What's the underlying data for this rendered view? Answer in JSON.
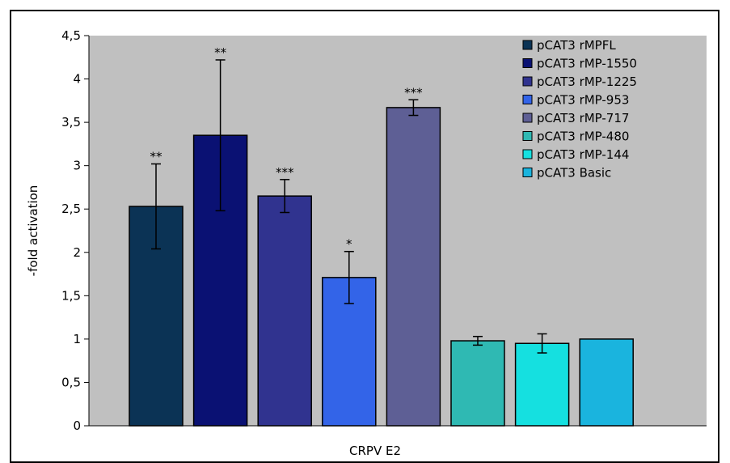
{
  "chart_data": {
    "type": "bar",
    "title": "",
    "xlabel": "CRPV E2",
    "ylabel": "-fold activation",
    "ylim": [
      0,
      4.5
    ],
    "y_ticks": [
      "0",
      "0,5",
      "1",
      "1,5",
      "2",
      "2,5",
      "3",
      "3,5",
      "4",
      "4,5"
    ],
    "y_tick_values": [
      0,
      0.5,
      1,
      1.5,
      2,
      2.5,
      3,
      3.5,
      4,
      4.5
    ],
    "grid": false,
    "legend_position": "top-right",
    "plot_background": "#c0c0c0",
    "series": [
      {
        "name": "pCAT3 rMPFL",
        "value": 2.53,
        "error": 0.49,
        "significance": "**",
        "color": "#0b3355"
      },
      {
        "name": "pCAT3 rMP-1550",
        "value": 3.35,
        "error": 0.87,
        "significance": "**",
        "color": "#0a1173"
      },
      {
        "name": "pCAT3 rMP-1225",
        "value": 2.65,
        "error": 0.19,
        "significance": "***",
        "color": "#30338f"
      },
      {
        "name": "pCAT3 rMP-953",
        "value": 1.71,
        "error": 0.3,
        "significance": "*",
        "color": "#3364e8"
      },
      {
        "name": "pCAT3 rMP-717",
        "value": 3.67,
        "error": 0.09,
        "significance": "***",
        "color": "#5e5f95"
      },
      {
        "name": "pCAT3 rMP-480",
        "value": 0.98,
        "error": 0.05,
        "significance": "",
        "color": "#2fb9b3"
      },
      {
        "name": "pCAT3 rMP-144",
        "value": 0.95,
        "error": 0.11,
        "significance": "",
        "color": "#15e0e0"
      },
      {
        "name": "pCAT3 Basic",
        "value": 1.0,
        "error": 0,
        "significance": "",
        "color": "#1ab4de"
      }
    ]
  }
}
